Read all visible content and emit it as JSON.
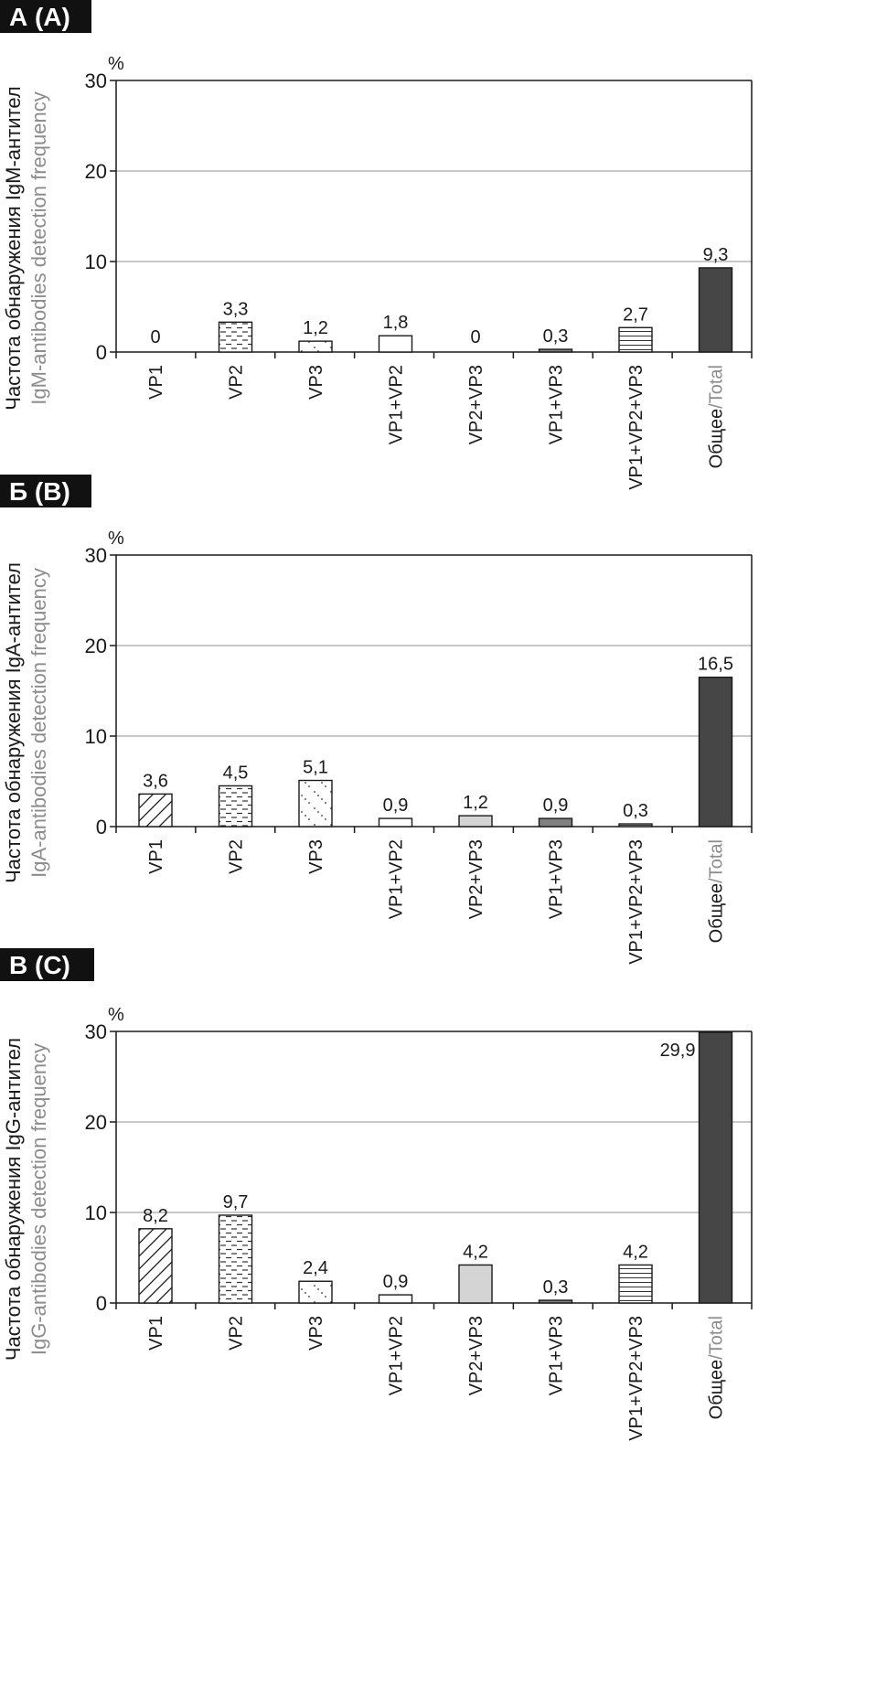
{
  "colors": {
    "axis": "#1a1a1a",
    "grid": "#b5b5b5",
    "ylabel_secondary": "#8c8c8c",
    "total_secondary": "#8c8c8c",
    "panel_tag_bg": "#111111",
    "panel_tag_text": "#ffffff",
    "fill_white": "#ffffff",
    "fill_light_gray": "#d4d4d4",
    "fill_mid_gray": "#808080",
    "fill_dark_gray": "#464646"
  },
  "chart_data": [
    {
      "type": "bar",
      "panel_label": "А (A)",
      "unit": "%",
      "ylabel_ru": "Частота обнаружения IgM-антител",
      "ylabel_en": "IgM-antibodies detection frequency",
      "ylim": [
        0,
        30
      ],
      "yticks": [
        0,
        10,
        20,
        30
      ],
      "grid": true,
      "categories": [
        "VP1",
        "VP2",
        "VP3",
        "VP1+VP2",
        "VP2+VP3",
        "VP1+VP3",
        "VP1+VP2+VP3",
        "Общее"
      ],
      "total_suffix": "/Total",
      "values": [
        0,
        3.3,
        1.2,
        1.8,
        0,
        0.3,
        2.7,
        9.3
      ],
      "value_labels": [
        "0",
        "3,3",
        "1,2",
        "1,8",
        "0",
        "0,3",
        "2,7",
        "9,3"
      ],
      "patterns": [
        "diagonal",
        "dashes",
        "dots",
        "white",
        "light-gray",
        "mid-gray",
        "hlines",
        "dark-gray"
      ]
    },
    {
      "type": "bar",
      "panel_label": "Б (B)",
      "unit": "%",
      "ylabel_ru": "Частота обнаружения IgA-антител",
      "ylabel_en": "IgA-antibodies detection frequency",
      "ylim": [
        0,
        30
      ],
      "yticks": [
        0,
        10,
        20,
        30
      ],
      "grid": true,
      "categories": [
        "VP1",
        "VP2",
        "VP3",
        "VP1+VP2",
        "VP2+VP3",
        "VP1+VP3",
        "VP1+VP2+VP3",
        "Общее"
      ],
      "total_suffix": "/Total",
      "values": [
        3.6,
        4.5,
        5.1,
        0.9,
        1.2,
        0.9,
        0.3,
        16.5
      ],
      "value_labels": [
        "3,6",
        "4,5",
        "5,1",
        "0,9",
        "1,2",
        "0,9",
        "0,3",
        "16,5"
      ],
      "patterns": [
        "diagonal",
        "dashes",
        "dots",
        "white",
        "light-gray",
        "mid-gray",
        "hlines",
        "dark-gray"
      ]
    },
    {
      "type": "bar",
      "panel_label": "В (C)",
      "unit": "%",
      "ylabel_ru": "Частота обнаружения IgG-антител",
      "ylabel_en": "IgG-antibodies detection frequency",
      "ylim": [
        0,
        30
      ],
      "yticks": [
        0,
        10,
        20,
        30
      ],
      "grid": true,
      "categories": [
        "VP1",
        "VP2",
        "VP3",
        "VP1+VP2",
        "VP2+VP3",
        "VP1+VP3",
        "VP1+VP2+VP3",
        "Общее"
      ],
      "total_suffix": "/Total",
      "values": [
        8.2,
        9.7,
        2.4,
        0.9,
        4.2,
        0.3,
        4.2,
        29.9
      ],
      "value_labels": [
        "8,2",
        "9,7",
        "2,4",
        "0,9",
        "4,2",
        "0,3",
        "4,2",
        "29,9"
      ],
      "patterns": [
        "diagonal",
        "dashes",
        "dots",
        "white",
        "light-gray",
        "mid-gray",
        "hlines",
        "dark-gray"
      ]
    }
  ]
}
